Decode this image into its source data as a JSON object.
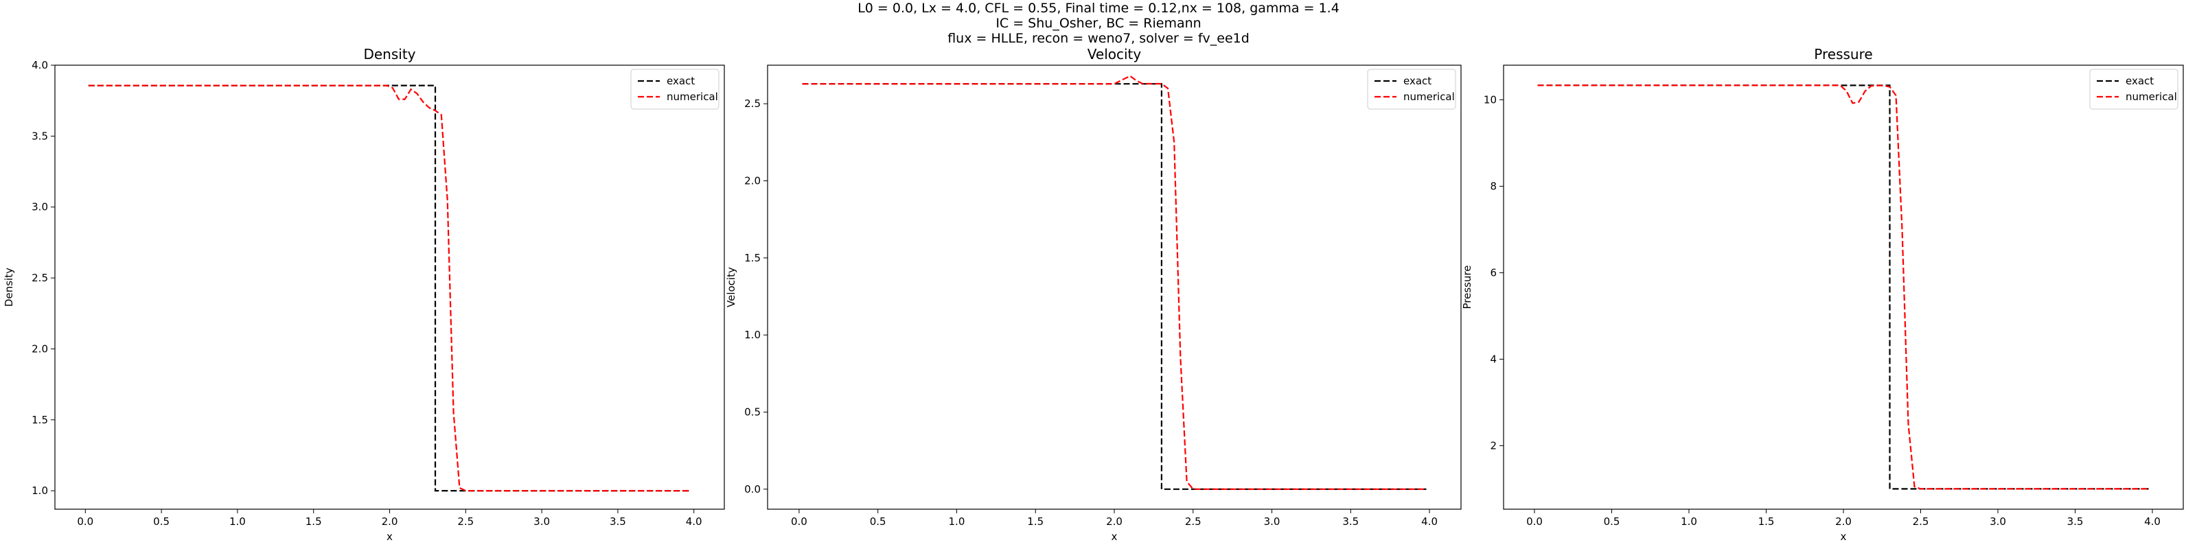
{
  "figure": {
    "suptitle_lines": [
      "L0 = 0.0, Lx = 4.0, CFL = 0.55, Final time = 0.12,nx = 108, gamma = 1.4",
      "IC = Shu_Osher, BC = Riemann",
      "flux = HLLE, recon = weno7, solver = fv_ee1d"
    ]
  },
  "chart_data": [
    {
      "type": "line",
      "title": "Density",
      "xlabel": "x",
      "ylabel": "Density",
      "xlim": [
        -0.2,
        4.2
      ],
      "ylim": [
        0.87,
        4.0
      ],
      "xticks": [
        0.0,
        0.5,
        1.0,
        1.5,
        2.0,
        2.5,
        3.0,
        3.5,
        4.0
      ],
      "xtick_labels": [
        "0.0",
        "0.5",
        "1.0",
        "1.5",
        "2.0",
        "2.5",
        "3.0",
        "3.5",
        "4.0"
      ],
      "yticks": [
        1.0,
        1.5,
        2.0,
        2.5,
        3.0,
        3.5,
        4.0
      ],
      "ytick_labels": [
        "1.0",
        "1.5",
        "2.0",
        "2.5",
        "3.0",
        "3.5",
        "4.0"
      ],
      "legend_position": "upper right",
      "series": [
        {
          "name": "exact",
          "color": "#000000",
          "style": "dashed",
          "x": [
            0.02,
            2.28,
            2.28,
            2.3,
            2.3,
            3.98
          ],
          "y": [
            3.857,
            3.857,
            3.857,
            3.857,
            1.0,
            1.0
          ]
        },
        {
          "name": "numerical",
          "color": "#ff0000",
          "style": "dashed",
          "x": [
            0.02,
            1.98,
            2.02,
            2.06,
            2.1,
            2.14,
            2.18,
            2.22,
            2.26,
            2.3,
            2.34,
            2.38,
            2.42,
            2.46,
            2.5,
            2.6,
            3.0,
            3.5,
            3.98
          ],
          "y": [
            3.857,
            3.857,
            3.84,
            3.76,
            3.76,
            3.83,
            3.8,
            3.74,
            3.7,
            3.68,
            3.65,
            3.05,
            1.55,
            1.02,
            1.0,
            1.0,
            1.0,
            1.0,
            1.0
          ]
        }
      ]
    },
    {
      "type": "line",
      "title": "Velocity",
      "xlabel": "x",
      "ylabel": "Velocity",
      "xlim": [
        -0.2,
        4.2
      ],
      "ylim": [
        -0.13,
        2.75
      ],
      "xticks": [
        0.0,
        0.5,
        1.0,
        1.5,
        2.0,
        2.5,
        3.0,
        3.5,
        4.0
      ],
      "xtick_labels": [
        "0.0",
        "0.5",
        "1.0",
        "1.5",
        "2.0",
        "2.5",
        "3.0",
        "3.5",
        "4.0"
      ],
      "yticks": [
        0.0,
        0.5,
        1.0,
        1.5,
        2.0,
        2.5
      ],
      "ytick_labels": [
        "0.0",
        "0.5",
        "1.0",
        "1.5",
        "2.0",
        "2.5"
      ],
      "legend_position": "upper right",
      "series": [
        {
          "name": "exact",
          "color": "#000000",
          "style": "dashed",
          "x": [
            0.02,
            2.28,
            2.28,
            2.3,
            2.3,
            3.98
          ],
          "y": [
            2.629,
            2.629,
            2.629,
            2.629,
            0.0,
            0.0
          ]
        },
        {
          "name": "numerical",
          "color": "#ff0000",
          "style": "dashed",
          "x": [
            0.02,
            2.0,
            2.06,
            2.1,
            2.14,
            2.18,
            2.22,
            2.26,
            2.3,
            2.34,
            2.38,
            2.42,
            2.46,
            2.5,
            3.0,
            3.5,
            3.98
          ],
          "y": [
            2.629,
            2.629,
            2.66,
            2.68,
            2.65,
            2.63,
            2.63,
            2.63,
            2.63,
            2.6,
            2.25,
            0.85,
            0.05,
            0.0,
            0.0,
            0.0,
            0.0
          ]
        }
      ]
    },
    {
      "type": "line",
      "title": "Pressure",
      "xlabel": "x",
      "ylabel": "Pressure",
      "xlim": [
        -0.2,
        4.2
      ],
      "ylim": [
        0.53,
        10.8
      ],
      "xticks": [
        0.0,
        0.5,
        1.0,
        1.5,
        2.0,
        2.5,
        3.0,
        3.5,
        4.0
      ],
      "xtick_labels": [
        "0.0",
        "0.5",
        "1.0",
        "1.5",
        "2.0",
        "2.5",
        "3.0",
        "3.5",
        "4.0"
      ],
      "yticks": [
        2,
        4,
        6,
        8,
        10
      ],
      "ytick_labels": [
        "2",
        "4",
        "6",
        "8",
        "10"
      ],
      "legend_position": "upper right",
      "series": [
        {
          "name": "exact",
          "color": "#000000",
          "style": "dashed",
          "x": [
            0.02,
            2.28,
            2.28,
            2.3,
            2.3,
            3.98
          ],
          "y": [
            10.333,
            10.333,
            10.333,
            10.333,
            1.0,
            1.0
          ]
        },
        {
          "name": "numerical",
          "color": "#ff0000",
          "style": "dashed",
          "x": [
            0.02,
            1.98,
            2.02,
            2.06,
            2.1,
            2.14,
            2.18,
            2.22,
            2.26,
            2.3,
            2.34,
            2.38,
            2.42,
            2.46,
            2.5,
            3.0,
            3.5,
            3.98
          ],
          "y": [
            10.333,
            10.333,
            10.2,
            9.92,
            9.95,
            10.2,
            10.32,
            10.33,
            10.33,
            10.3,
            10.1,
            7.0,
            2.5,
            1.05,
            1.0,
            1.0,
            1.0,
            1.0
          ]
        }
      ]
    }
  ]
}
